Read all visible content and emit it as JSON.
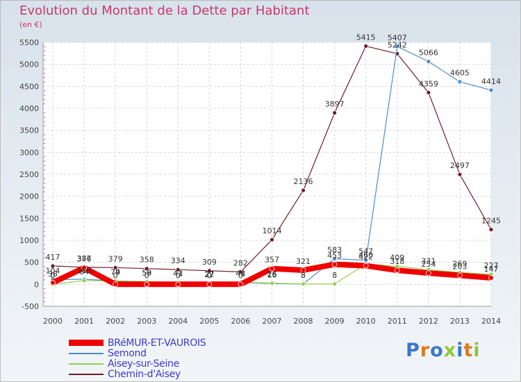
{
  "chart_data": {
    "type": "line",
    "title": "Evolution du Montant de la Dette par Habitant",
    "subtitle": "(en €)",
    "ylim": [
      -500,
      5500
    ],
    "yticks": [
      -500,
      0,
      500,
      1000,
      1500,
      2000,
      2500,
      3000,
      3500,
      4000,
      4500,
      5000,
      5500
    ],
    "x": [
      2000,
      2001,
      2002,
      2003,
      2004,
      2005,
      2006,
      2007,
      2008,
      2009,
      2010,
      2011,
      2012,
      2013,
      2014
    ],
    "grid": true,
    "legend": "bottom-left",
    "series": [
      {
        "name": "Chemin-d'Aisey",
        "color": "#6b1c2a",
        "width": 1.2,
        "marker": 5,
        "values": [
          417,
          387,
          379,
          358,
          334,
          309,
          282,
          1014,
          2136,
          3897,
          5415,
          5242,
          4359,
          2497,
          1245
        ],
        "labels": [
          "417",
          "387",
          "379",
          "358",
          "334",
          "309",
          "282",
          "1014",
          "2136",
          "3897",
          "5415",
          "5242",
          "4359",
          "2497",
          "1245"
        ]
      },
      {
        "name": "Semond",
        "color": "#4a8cc8",
        "width": 1.2,
        "marker": 5,
        "values": [
          104,
          116,
          79,
          59,
          41,
          22,
          41,
          16,
          8,
          583,
          547,
          5407,
          5066,
          4605,
          4414
        ],
        "labels": [
          "104",
          "116",
          "79",
          "59",
          "41",
          "22",
          "41",
          "16",
          "8",
          "583",
          "547",
          "5407",
          "5066",
          "4605",
          "4414"
        ]
      },
      {
        "name": "Aisey-sur-Seine",
        "color": "#90d048",
        "width": 1.2,
        "marker": 5,
        "values": [
          0,
          84,
          74,
          58,
          43,
          27,
          48,
          26,
          8,
          8,
          460,
          409,
          331,
          269,
          227
        ],
        "labels": [
          "0",
          "84",
          "74",
          "58",
          "43",
          "27",
          "48",
          "26",
          "8",
          "8",
          "460",
          "409",
          "331",
          "269",
          "227"
        ]
      },
      {
        "name": "BRéMUR-ET-VAUROIS",
        "color": "#ee0000",
        "width": 8,
        "marker": 6,
        "values": [
          38,
          376,
          0,
          0,
          0,
          0,
          0,
          357,
          321,
          453,
          422,
          318,
          254,
          203,
          147
        ],
        "labels": [
          "38",
          "376",
          "0",
          "0",
          "0",
          "0",
          "0",
          "357",
          "321",
          "453",
          "422",
          "318",
          "254",
          "203",
          "147"
        ]
      }
    ]
  },
  "legend": {
    "items": [
      {
        "label": "BRéMUR-ET-VAUROIS",
        "color": "#ee0000"
      },
      {
        "label": "Semond",
        "color": "#4a8cc8"
      },
      {
        "label": "Aisey-sur-Seine",
        "color": "#90d048"
      },
      {
        "label": "Chemin-d'Aisey",
        "color": "#6b1c2a"
      }
    ]
  },
  "brand": {
    "text": "Proxiti",
    "colors": [
      "#3a78c8",
      "#e07a1c",
      "#3a78c8",
      "#8cc83c",
      "#3a78c8",
      "#e07a1c",
      "#8cc83c"
    ]
  }
}
